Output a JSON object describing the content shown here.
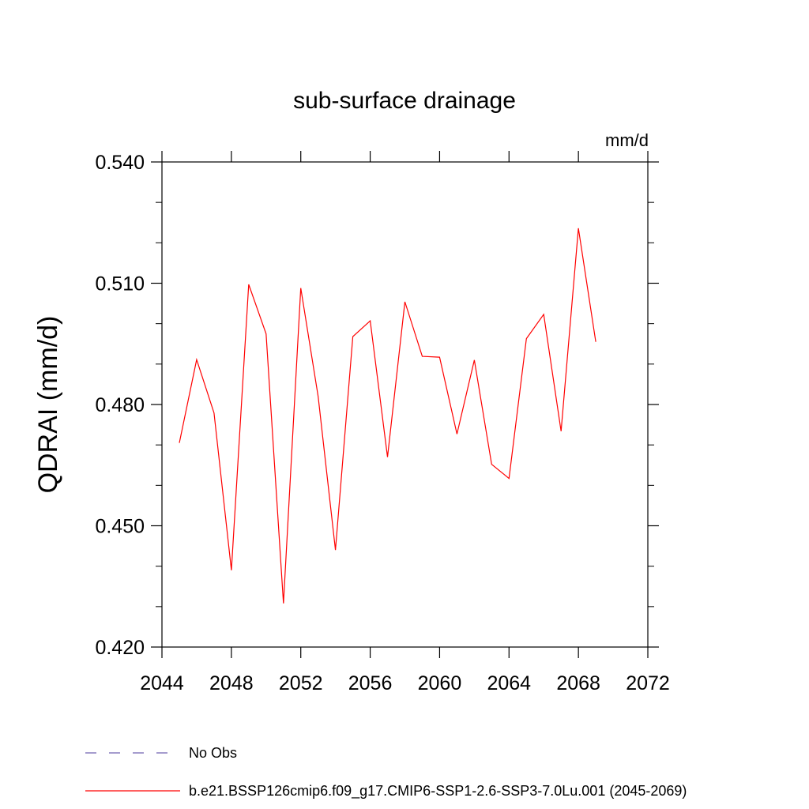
{
  "chart_data": {
    "type": "line",
    "title": "sub-surface drainage",
    "units_label": "mm/d",
    "ylabel": "QDRAI  (mm/d)",
    "xlabel": "",
    "xlim": [
      2044,
      2072
    ],
    "ylim": [
      0.42,
      0.54
    ],
    "x_ticks": [
      2044,
      2048,
      2052,
      2056,
      2060,
      2064,
      2068,
      2072
    ],
    "x_tick_labels": [
      "2044",
      "2048",
      "2052",
      "2056",
      "2060",
      "2064",
      "2068",
      "2072"
    ],
    "y_ticks": [
      0.42,
      0.45,
      0.48,
      0.51,
      0.54
    ],
    "y_tick_labels": [
      "0.420",
      "0.450",
      "0.480",
      "0.510",
      "0.540"
    ],
    "grid": false,
    "series": [
      {
        "name": "b.e21.BSSP126cmip6.f09_g17.CMIP6-SSP1-2.6-SSP3-7.0Lu.001 (2045-2069)",
        "color": "#ff0000",
        "x": [
          2045,
          2046,
          2047,
          2048,
          2049,
          2050,
          2051,
          2052,
          2053,
          2054,
          2055,
          2056,
          2057,
          2058,
          2059,
          2060,
          2061,
          2062,
          2063,
          2064,
          2065,
          2066,
          2067,
          2068,
          2069
        ],
        "y": [
          0.4705,
          0.4911,
          0.4779,
          0.439,
          0.5097,
          0.4975,
          0.4308,
          0.5088,
          0.482,
          0.444,
          0.4968,
          0.5007,
          0.467,
          0.5054,
          0.4919,
          0.4917,
          0.4727,
          0.491,
          0.4652,
          0.4617,
          0.4963,
          0.5023,
          0.4734,
          0.5236,
          0.4955
        ]
      }
    ],
    "legend": {
      "placement": "bottom",
      "entries": [
        {
          "label": "No Obs",
          "color": "#7060b0",
          "style": "dashed"
        },
        {
          "label": "b.e21.BSSP126cmip6.f09_g17.CMIP6-SSP1-2.6-SSP3-7.0Lu.001 (2045-2069)",
          "color": "#ff0000",
          "style": "solid"
        }
      ]
    }
  }
}
